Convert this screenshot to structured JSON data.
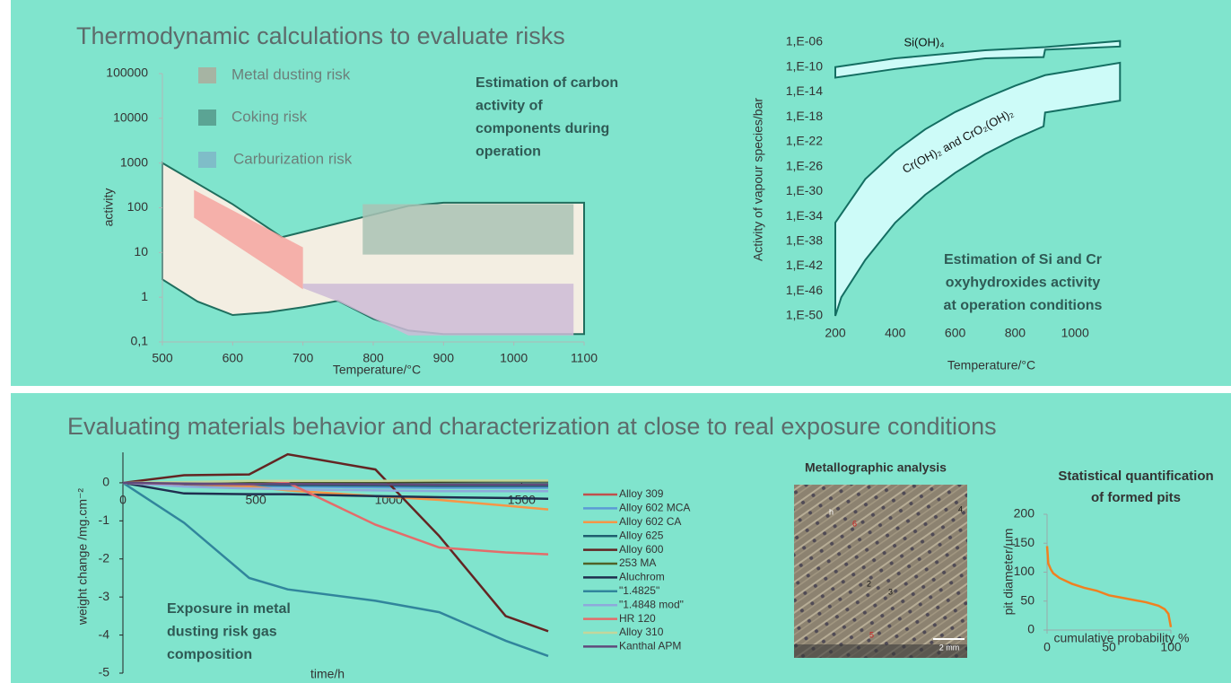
{
  "sections": [
    {
      "title": "Thermodynamic calculations to evaluate risks"
    },
    {
      "title": "Evaluating materials behavior and characterization at close to real exposure conditions"
    }
  ],
  "chart_data": [
    {
      "type": "area",
      "log_y": true,
      "x_label": "Temperature/°C",
      "y_label": "activity",
      "xlim": [
        500,
        1100
      ],
      "xticks": [
        500,
        600,
        700,
        800,
        900,
        1000,
        1100
      ],
      "ylim": [
        0.1,
        100000
      ],
      "yticks": [
        {
          "value": 0.1,
          "label": "0,1"
        },
        1,
        10,
        100,
        1000,
        10000,
        100000
      ],
      "legend": [
        {
          "name": "Metal dusting risk",
          "color": "#a6b4a3"
        },
        {
          "name": "Coking risk",
          "color": "#5ba494"
        },
        {
          "name": "Carburization risk",
          "color": "#7fbdc8"
        }
      ],
      "annotation": [
        "Estimation of carbon",
        "activity of",
        "components during",
        "operation"
      ],
      "regions": [
        {
          "color": "#f3eee2",
          "edge": "#1f6e5e",
          "x": [
            500,
            600,
            670,
            750,
            850,
            900,
            1100,
            1100,
            900,
            850,
            800,
            750,
            700,
            650,
            600,
            550,
            500
          ],
          "y": [
            1000,
            120,
            22,
            45,
            110,
            130,
            130,
            0.15,
            0.15,
            0.18,
            0.33,
            0.83,
            0.6,
            0.46,
            0.4,
            0.8,
            2.5
          ]
        },
        {
          "color": "#f4a5a0",
          "x": [
            545,
            700,
            700,
            545
          ],
          "y": [
            250,
            13,
            1.5,
            60
          ]
        },
        {
          "color": "#a9c2b4",
          "x": [
            785,
            1085,
            1085,
            785
          ],
          "y": [
            120,
            120,
            9,
            9
          ]
        },
        {
          "color": "#cdbbd6",
          "x": [
            700,
            1085,
            1085,
            850,
            750,
            700
          ],
          "y": [
            2,
            2,
            0.14,
            0.14,
            0.8,
            1.6
          ]
        }
      ]
    },
    {
      "type": "area",
      "log_y": true,
      "x_label": "Temperature/°C",
      "y_label": "Activity of vapour species/bar",
      "xlim": [
        200,
        1200
      ],
      "xticks": [
        200,
        400,
        600,
        800,
        1000
      ],
      "ylim": [
        1e-50,
        1e-06
      ],
      "yticks": [
        {
          "value": 1e-06,
          "label": "1,E-06"
        },
        {
          "value": 1e-10,
          "label": "1,E-10"
        },
        {
          "value": 1e-14,
          "label": "1,E-14"
        },
        {
          "value": 1e-18,
          "label": "1,E-18"
        },
        {
          "value": 1e-22,
          "label": "1,E-22"
        },
        {
          "value": 1e-26,
          "label": "1,E-26"
        },
        {
          "value": 1e-30,
          "label": "1,E-30"
        },
        {
          "value": 1e-34,
          "label": "1,E-34"
        },
        {
          "value": 1e-38,
          "label": "1,E-38"
        },
        {
          "value": 1e-42,
          "label": "1,E-42"
        },
        {
          "value": 1e-46,
          "label": "1,E-46"
        },
        {
          "value": 1e-50,
          "label": "1,E-50"
        }
      ],
      "annotation": [
        "Estimation of Si and Cr",
        "oxyhydroxides activity",
        "at operation conditions"
      ],
      "regions": [
        {
          "label": "Si(OH)₄",
          "color": "#cdfbf8",
          "edge": "#146e62",
          "x": [
            200,
            400,
            700,
            900,
            1150,
            1150,
            900,
            895,
            700,
            400,
            200
          ],
          "y": [
            1e-10,
            2.5e-09,
            5e-08,
            1.6e-07,
            1.6e-06,
            2e-07,
            6.3e-08,
            4e-09,
            2.5e-09,
            5e-11,
            2e-12
          ]
        },
        {
          "label": "Cr(OH)₂ and CrO₂(OH)₂",
          "color": "#cdfbf8",
          "edge": "#146e62",
          "x": [
            200,
            300,
            400,
            500,
            600,
            700,
            800,
            900,
            1150,
            1150,
            900,
            895,
            800,
            700,
            600,
            500,
            400,
            300,
            220,
            200
          ],
          "y": [
            1e-35,
            1e-28,
            3e-24,
            1e-20,
            6e-18,
            1e-15,
            1e-13,
            5e-12,
            5e-10,
            4e-16,
            5e-18,
            3e-20,
            3e-22,
            1e-24,
            1e-27,
            3e-31,
            1e-35,
            1e-41,
            1e-47,
            1e-50
          ]
        }
      ]
    },
    {
      "type": "line",
      "x_label": "time/h",
      "y_label": "weight change /mg.cm⁻²",
      "xlim": [
        0,
        1600
      ],
      "xticks": [
        0,
        500,
        1000,
        1500
      ],
      "ylim": [
        -5,
        0.8
      ],
      "yticks": [
        0,
        -1,
        -2,
        -3,
        -4,
        -5
      ],
      "annotation": [
        "Exposure in metal",
        "dusting risk gas",
        "composition"
      ],
      "x": [
        0,
        230,
        475,
        620,
        950,
        1190,
        1440,
        1600
      ],
      "series": [
        {
          "name": "Alloy 309",
          "color": "#c0504d",
          "values": [
            0,
            0,
            0.02,
            0.05,
            0.05,
            0.05,
            0.05,
            0.05
          ]
        },
        {
          "name": "Alloy 602 MCA",
          "color": "#5b9bd5",
          "values": [
            0,
            -0.05,
            -0.08,
            -0.1,
            -0.12,
            -0.13,
            -0.13,
            -0.13
          ]
        },
        {
          "name": "Alloy 602 CA",
          "color": "#f79646",
          "values": [
            0,
            -0.05,
            -0.1,
            -0.2,
            -0.35,
            -0.45,
            -0.6,
            -0.7
          ]
        },
        {
          "name": "Alloy 625",
          "color": "#1f5f6f",
          "values": [
            0,
            -0.05,
            -0.05,
            -0.06,
            -0.07,
            -0.08,
            -0.08,
            -0.08
          ]
        },
        {
          "name": "Alloy 600",
          "color": "#632523",
          "values": [
            0,
            0.2,
            0.22,
            0.75,
            0.35,
            -1.4,
            -3.5,
            -3.9
          ]
        },
        {
          "name": "253 MA",
          "color": "#4f6228",
          "values": [
            0,
            0.01,
            0.02,
            0.03,
            0.03,
            0.04,
            0.05,
            0.05
          ]
        },
        {
          "name": "Aluchrom",
          "color": "#1f2f4f",
          "values": [
            0,
            -0.28,
            -0.3,
            -0.3,
            -0.35,
            -0.38,
            -0.4,
            -0.42
          ]
        },
        {
          "name": "\"1.4825\"",
          "color": "#31859c",
          "values": [
            0,
            -1.05,
            -2.5,
            -2.8,
            -3.1,
            -3.4,
            -4.15,
            -4.55
          ]
        },
        {
          "name": "\"1.4848 mod\"",
          "color": "#8ea9db",
          "values": [
            0,
            -0.1,
            -0.15,
            -0.17,
            -0.2,
            -0.22,
            -0.22,
            -0.22
          ]
        },
        {
          "name": "HR 120",
          "color": "#e46c6a",
          "values": [
            0,
            -0.03,
            -0.05,
            0,
            -1.1,
            -1.7,
            -1.83,
            -1.88
          ]
        },
        {
          "name": "Alloy 310",
          "color": "#c3d69b",
          "values": [
            0,
            0.02,
            0.05,
            0.05,
            0.05,
            0.06,
            0.06,
            0.06
          ]
        },
        {
          "name": "Kanthal APM",
          "color": "#604a7b",
          "values": [
            0,
            -0.02,
            -0.03,
            -0.03,
            -0.04,
            -0.05,
            -0.05,
            -0.05
          ]
        }
      ]
    },
    {
      "type": "line",
      "title": [
        "Statistical quantification",
        "of formed pits"
      ],
      "x_label": "cumulative probability %",
      "y_label": "pit diameter/µm",
      "xlim": [
        0,
        100
      ],
      "xticks": [
        0,
        50,
        100
      ],
      "ylim": [
        0,
        200
      ],
      "yticks": [
        0,
        50,
        100,
        150,
        200
      ],
      "x": [
        0,
        1,
        3,
        5,
        10,
        20,
        30,
        40,
        50,
        60,
        70,
        80,
        90,
        95,
        98,
        100
      ],
      "series": [
        {
          "color": "#f08020",
          "values": [
            145,
            115,
            105,
            98,
            90,
            80,
            73,
            68,
            60,
            56,
            52,
            48,
            42,
            36,
            28,
            5
          ]
        }
      ]
    }
  ],
  "micrograph": {
    "title": "Metallographic analysis",
    "labels": [
      "h",
      "4",
      "6",
      "2",
      "3",
      "5"
    ],
    "scale": "2 mm"
  }
}
